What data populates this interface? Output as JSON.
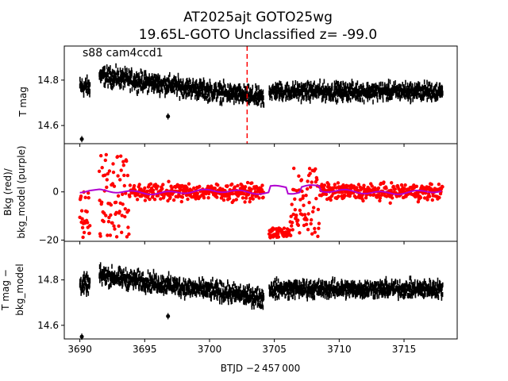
{
  "title": {
    "line1": "AT2025ajt  GOTO25wg",
    "line2": "19.65L-GOTO Unclassified z= -99.0"
  },
  "annotation": "s88 cam4ccd1",
  "xaxis": {
    "label": "BTJD −2 457 000",
    "range": [
      3688.8,
      3719.1
    ],
    "ticks": [
      3690,
      3695,
      3700,
      3705,
      3710,
      3715
    ],
    "tick_labels": [
      "3690",
      "3695",
      "3700",
      "3705",
      "3710",
      "3715"
    ]
  },
  "colors": {
    "data": "#000000",
    "bkg": "#ff0000",
    "bkg_model": "#b000d0",
    "marker_line": "#ff0000"
  },
  "chart_data": [
    {
      "type": "scatter",
      "name": "panel-top",
      "ylabel": "T mag",
      "yrange": [
        14.95,
        14.52
      ],
      "inverted": true,
      "yticks": [
        14.6,
        14.8
      ],
      "ytick_labels": [
        "14.6",
        "14.8"
      ],
      "vline_x": 3702.9,
      "segments": [
        {
          "x0": 3690.0,
          "x1": 3690.8,
          "base": 14.77,
          "spread": 0.06
        },
        {
          "x0": 3691.5,
          "x1": 3704.2,
          "base_start": 14.82,
          "base_end": 14.72,
          "spread": 0.06
        },
        {
          "x0": 3704.6,
          "x1": 3718.0,
          "base": 14.75,
          "spread": 0.055
        }
      ],
      "outliers": [
        {
          "x": 3690.15,
          "y": 14.54
        },
        {
          "x": 3696.8,
          "y": 14.64
        }
      ]
    },
    {
      "type": "scatter",
      "name": "panel-middle",
      "ylabel_line1": "Bkg (red)/",
      "ylabel_line2": "bkg_model (purple)",
      "yrange": [
        -20.5,
        20
      ],
      "yticks": [
        -20,
        0
      ],
      "ytick_labels": [
        "−20",
        "0"
      ],
      "bkg_level": 0,
      "bkg_spread": 5,
      "bkg_clip": [
        -19,
        17
      ],
      "features": [
        {
          "x0": 3690.0,
          "x1": 3690.8,
          "note": "scattered low values",
          "min": -19,
          "max": 0
        },
        {
          "x0": 3691.5,
          "x1": 3693.8,
          "note": "high variability",
          "min": -19,
          "max": 17
        },
        {
          "x0": 3704.6,
          "x1": 3706.2,
          "note": "low band",
          "min": -19,
          "max": -15
        },
        {
          "x0": 3706.2,
          "x1": 3708.5,
          "note": "high variability",
          "min": -19,
          "max": 10
        }
      ],
      "model_level": 0
    },
    {
      "type": "scatter",
      "name": "panel-bottom",
      "ylabel_line1": "T mag −",
      "ylabel_line2": "bkg_model",
      "yrange": [
        14.97,
        14.54
      ],
      "inverted": true,
      "yticks": [
        14.6,
        14.8
      ],
      "ytick_labels": [
        "14.6",
        "14.8"
      ],
      "segments": [
        {
          "x0": 3690.0,
          "x1": 3690.8,
          "base": 14.78,
          "spread": 0.06
        },
        {
          "x0": 3691.5,
          "x1": 3704.2,
          "base_start": 14.82,
          "base_end": 14.72,
          "spread": 0.06
        },
        {
          "x0": 3704.6,
          "x1": 3718.0,
          "base": 14.76,
          "spread": 0.055
        }
      ],
      "outliers": [
        {
          "x": 3690.15,
          "y": 14.55
        },
        {
          "x": 3696.8,
          "y": 14.64
        }
      ]
    }
  ]
}
